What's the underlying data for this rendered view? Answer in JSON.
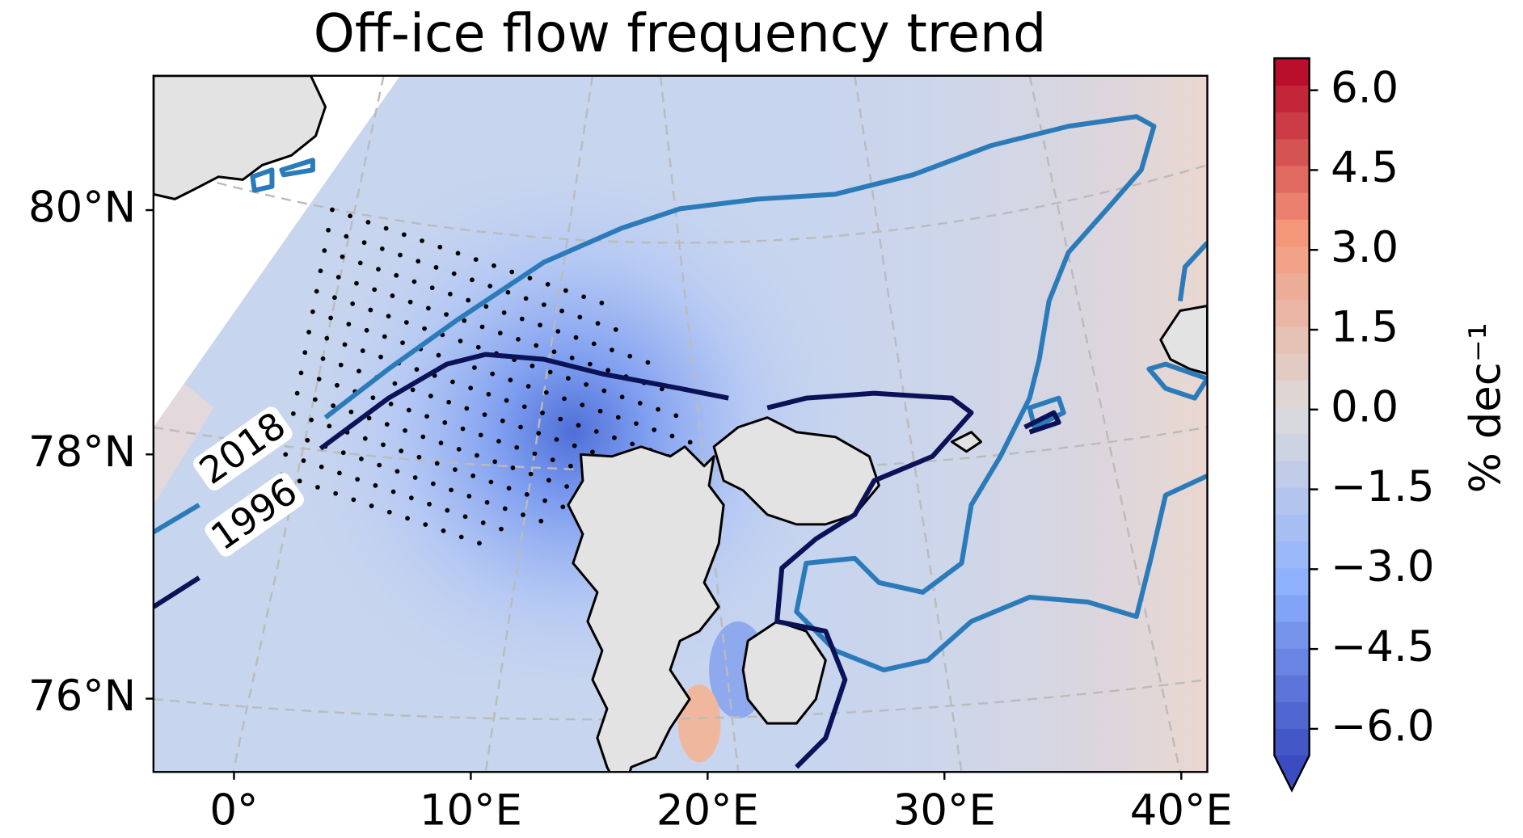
{
  "chart_data": {
    "type": "contour-map",
    "title": "Off-ice flow frequency trend",
    "xlim": [
      -3.4,
      41.1
    ],
    "xticks": [
      {
        "value": 0,
        "label": "0°"
      },
      {
        "value": 10,
        "label": "10°E"
      },
      {
        "value": 20,
        "label": "20°E"
      },
      {
        "value": 30,
        "label": "30°E"
      },
      {
        "value": 40,
        "label": "40°E"
      }
    ],
    "ylim": [
      75.4,
      81.1
    ],
    "yticks": [
      {
        "value": 76,
        "label": "76°N"
      },
      {
        "value": 78,
        "label": "78°N"
      },
      {
        "value": 80,
        "label": "80°N"
      }
    ],
    "colorbar": {
      "label": "% dec⁻¹",
      "clim": [
        -6.5,
        6.6
      ],
      "extend": "min",
      "ticks": [
        {
          "value": -6,
          "label": "−6.0"
        },
        {
          "value": -4.5,
          "label": "−4.5"
        },
        {
          "value": -3,
          "label": "−3.0"
        },
        {
          "value": -1.5,
          "label": "−1.5"
        },
        {
          "value": 0,
          "label": "0.0"
        },
        1.5,
        {
          "value": 3,
          "label": "3.0"
        },
        4.5,
        {
          "value": 6,
          "label": "6.0"
        }
      ]
    },
    "contours": [
      {
        "label": "2018",
        "color": "#2b7bba"
      },
      {
        "label": "1996",
        "color": "#0b1257"
      }
    ]
  }
}
